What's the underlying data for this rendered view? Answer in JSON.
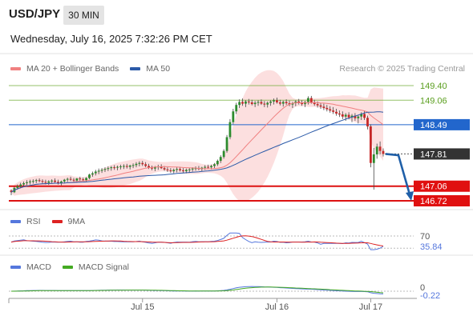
{
  "header": {
    "symbol": "USD/JPY",
    "timeframe": "30 MIN",
    "datetime": "Wednesday, July 16, 2025 7:32:26 PM CET"
  },
  "legends": {
    "price": [
      {
        "label": "MA 20 + Bollinger Bands",
        "color": "#f08080"
      },
      {
        "label": "MA 50",
        "color": "#2b5aa8"
      }
    ],
    "rsi": [
      {
        "label": "RSI",
        "color": "#5577dd"
      },
      {
        "label": "9MA",
        "color": "#dd2222"
      }
    ],
    "macd": [
      {
        "label": "MACD",
        "color": "#5577dd"
      },
      {
        "label": "MACD Signal",
        "color": "#44aa22"
      }
    ]
  },
  "credit": "Research © 2025 Trading Central",
  "chart_data": {
    "type": "candlestick",
    "price_levels": [
      {
        "value": 149.4,
        "label": "149.40",
        "kind": "resistance",
        "color": "#6aa82a"
      },
      {
        "value": 149.06,
        "label": "149.06",
        "kind": "resistance",
        "color": "#6aa82a"
      },
      {
        "value": 148.49,
        "label": "148.49",
        "kind": "pivot",
        "color": "#2266cc"
      },
      {
        "value": 147.81,
        "label": "147.81",
        "kind": "last",
        "color": "#333333"
      },
      {
        "value": 147.06,
        "label": "147.06",
        "kind": "support",
        "color": "#dd1111"
      },
      {
        "value": 146.72,
        "label": "146.72",
        "kind": "support",
        "color": "#dd1111"
      }
    ],
    "price_axis": {
      "min": 146.6,
      "max": 149.55
    },
    "x_axis": {
      "ticks": [
        "Jul 15",
        "Jul 16",
        "Jul 17"
      ],
      "tick_index": [
        42,
        85,
        115
      ],
      "count": 125
    },
    "candles": [
      [
        146.96,
        146.99,
        146.85,
        146.92
      ],
      [
        146.92,
        147.05,
        146.9,
        147.02
      ],
      [
        147.02,
        147.1,
        146.98,
        147.06
      ],
      [
        147.06,
        147.14,
        147.01,
        147.1
      ],
      [
        147.1,
        147.17,
        147.05,
        147.13
      ],
      [
        147.13,
        147.2,
        147.08,
        147.15
      ],
      [
        147.15,
        147.21,
        147.1,
        147.17
      ],
      [
        147.17,
        147.22,
        147.12,
        147.18
      ],
      [
        147.18,
        147.23,
        147.13,
        147.2
      ],
      [
        147.2,
        147.24,
        147.15,
        147.18
      ],
      [
        147.18,
        147.22,
        147.12,
        147.16
      ],
      [
        147.16,
        147.21,
        147.1,
        147.14
      ],
      [
        147.14,
        147.2,
        147.09,
        147.17
      ],
      [
        147.17,
        147.22,
        147.12,
        147.19
      ],
      [
        147.19,
        147.24,
        147.14,
        147.16
      ],
      [
        147.16,
        147.21,
        147.1,
        147.13
      ],
      [
        147.13,
        147.19,
        147.08,
        147.17
      ],
      [
        147.17,
        147.23,
        147.12,
        147.21
      ],
      [
        147.21,
        147.26,
        147.16,
        147.23
      ],
      [
        147.23,
        147.28,
        147.18,
        147.21
      ],
      [
        147.21,
        147.25,
        147.15,
        147.19
      ],
      [
        147.19,
        147.25,
        147.14,
        147.24
      ],
      [
        147.24,
        147.28,
        147.18,
        147.22
      ],
      [
        147.22,
        147.26,
        147.17,
        147.2
      ],
      [
        147.2,
        147.27,
        147.16,
        147.25
      ],
      [
        147.25,
        147.35,
        147.22,
        147.33
      ],
      [
        147.33,
        147.4,
        147.28,
        147.36
      ],
      [
        147.36,
        147.44,
        147.31,
        147.4
      ],
      [
        147.4,
        147.47,
        147.34,
        147.42
      ],
      [
        147.42,
        147.48,
        147.37,
        147.44
      ],
      [
        147.44,
        147.5,
        147.39,
        147.46
      ],
      [
        147.46,
        147.52,
        147.41,
        147.48
      ],
      [
        147.48,
        147.53,
        147.42,
        147.5
      ],
      [
        147.5,
        147.55,
        147.44,
        147.49
      ],
      [
        147.49,
        147.54,
        147.43,
        147.51
      ],
      [
        147.51,
        147.56,
        147.45,
        147.52
      ],
      [
        147.52,
        147.57,
        147.46,
        147.53
      ],
      [
        147.53,
        147.58,
        147.47,
        147.51
      ],
      [
        147.51,
        147.56,
        147.45,
        147.54
      ],
      [
        147.54,
        147.59,
        147.48,
        147.55
      ],
      [
        147.55,
        147.62,
        147.5,
        147.58
      ],
      [
        147.58,
        147.64,
        147.52,
        147.6
      ],
      [
        147.6,
        147.65,
        147.53,
        147.57
      ],
      [
        147.57,
        147.62,
        147.5,
        147.53
      ],
      [
        147.53,
        147.58,
        147.46,
        147.49
      ],
      [
        147.49,
        147.54,
        147.43,
        147.47
      ],
      [
        147.47,
        147.53,
        147.41,
        147.5
      ],
      [
        147.5,
        147.56,
        147.44,
        147.52
      ],
      [
        147.52,
        147.57,
        147.46,
        147.48
      ],
      [
        147.48,
        147.53,
        147.42,
        147.45
      ],
      [
        147.45,
        147.5,
        147.39,
        147.43
      ],
      [
        147.43,
        147.48,
        147.37,
        147.41
      ],
      [
        147.41,
        147.47,
        147.36,
        147.44
      ],
      [
        147.44,
        147.5,
        147.38,
        147.46
      ],
      [
        147.46,
        147.51,
        147.4,
        147.43
      ],
      [
        147.43,
        147.48,
        147.37,
        147.41
      ],
      [
        147.41,
        147.47,
        147.36,
        147.44
      ],
      [
        147.44,
        147.49,
        147.38,
        147.45
      ],
      [
        147.45,
        147.5,
        147.4,
        147.47
      ],
      [
        147.47,
        147.52,
        147.42,
        147.48
      ],
      [
        147.48,
        147.53,
        147.43,
        147.46
      ],
      [
        147.46,
        147.51,
        147.41,
        147.49
      ],
      [
        147.49,
        147.55,
        147.44,
        147.51
      ],
      [
        147.51,
        147.56,
        147.46,
        147.5
      ],
      [
        147.5,
        147.56,
        147.45,
        147.53
      ],
      [
        147.53,
        147.6,
        147.48,
        147.57
      ],
      [
        147.57,
        147.68,
        147.53,
        147.65
      ],
      [
        147.65,
        147.78,
        147.6,
        147.74
      ],
      [
        147.74,
        147.92,
        147.7,
        147.88
      ],
      [
        147.88,
        148.25,
        147.84,
        148.2
      ],
      [
        148.2,
        148.62,
        148.15,
        148.55
      ],
      [
        148.55,
        148.86,
        148.5,
        148.8
      ],
      [
        148.8,
        149.0,
        148.74,
        148.95
      ],
      [
        148.95,
        149.08,
        148.88,
        149.02
      ],
      [
        149.02,
        149.1,
        148.93,
        148.98
      ],
      [
        148.98,
        149.06,
        148.9,
        149.03
      ],
      [
        149.03,
        149.09,
        148.96,
        149.01
      ],
      [
        149.01,
        149.07,
        148.94,
        148.97
      ],
      [
        148.97,
        149.04,
        148.9,
        149.0
      ],
      [
        149.0,
        149.06,
        148.93,
        149.02
      ],
      [
        149.02,
        149.08,
        148.95,
        148.98
      ],
      [
        148.98,
        149.04,
        148.9,
        148.96
      ],
      [
        148.96,
        149.03,
        148.89,
        149.0
      ],
      [
        149.0,
        149.06,
        148.93,
        149.03
      ],
      [
        149.03,
        149.1,
        148.96,
        149.06
      ],
      [
        149.06,
        149.12,
        148.98,
        149.01
      ],
      [
        149.01,
        149.07,
        148.94,
        148.98
      ],
      [
        148.98,
        149.05,
        148.91,
        149.02
      ],
      [
        149.02,
        149.08,
        148.95,
        148.99
      ],
      [
        148.99,
        149.05,
        148.92,
        148.96
      ],
      [
        148.96,
        149.02,
        148.88,
        148.99
      ],
      [
        148.99,
        149.06,
        148.92,
        149.03
      ],
      [
        149.03,
        149.09,
        148.96,
        149.0
      ],
      [
        149.0,
        149.06,
        148.93,
        148.97
      ],
      [
        148.97,
        149.04,
        148.9,
        149.02
      ],
      [
        149.02,
        149.15,
        148.96,
        149.11
      ],
      [
        149.11,
        149.16,
        148.98,
        149.01
      ],
      [
        149.01,
        149.07,
        148.93,
        148.97
      ],
      [
        148.97,
        149.03,
        148.89,
        148.94
      ],
      [
        148.94,
        149.0,
        148.86,
        148.91
      ],
      [
        148.91,
        148.98,
        148.83,
        148.88
      ],
      [
        148.88,
        148.95,
        148.8,
        148.85
      ],
      [
        148.85,
        148.92,
        148.77,
        148.82
      ],
      [
        148.82,
        148.9,
        148.74,
        148.79
      ],
      [
        148.79,
        148.86,
        148.7,
        148.75
      ],
      [
        148.75,
        148.82,
        148.67,
        148.73
      ],
      [
        148.73,
        148.8,
        148.62,
        148.68
      ],
      [
        148.68,
        148.76,
        148.58,
        148.72
      ],
      [
        148.72,
        148.78,
        148.62,
        148.66
      ],
      [
        148.66,
        148.74,
        148.55,
        148.7
      ],
      [
        148.7,
        148.76,
        148.58,
        148.64
      ],
      [
        148.64,
        148.72,
        148.52,
        148.68
      ],
      [
        148.68,
        148.78,
        148.6,
        148.74
      ],
      [
        148.74,
        148.82,
        148.6,
        148.65
      ],
      [
        148.65,
        148.7,
        148.38,
        148.45
      ],
      [
        148.45,
        148.5,
        147.5,
        147.6
      ],
      [
        147.6,
        147.95,
        146.98,
        147.8
      ],
      [
        147.8,
        148.05,
        147.7,
        147.98
      ],
      [
        147.98,
        148.1,
        147.8,
        147.88
      ],
      [
        147.88,
        147.94,
        147.75,
        147.81
      ]
    ],
    "forecast": {
      "from": 147.81,
      "mid": 147.78,
      "to": 146.72
    },
    "rsi": {
      "level": 70,
      "level_label": "70",
      "value": 35.84,
      "value_label": "35.84",
      "color": "#5577dd"
    },
    "macd": {
      "zero_label": "0",
      "value": -0.22,
      "value_label": "-0.22",
      "color": "#5577dd"
    }
  }
}
